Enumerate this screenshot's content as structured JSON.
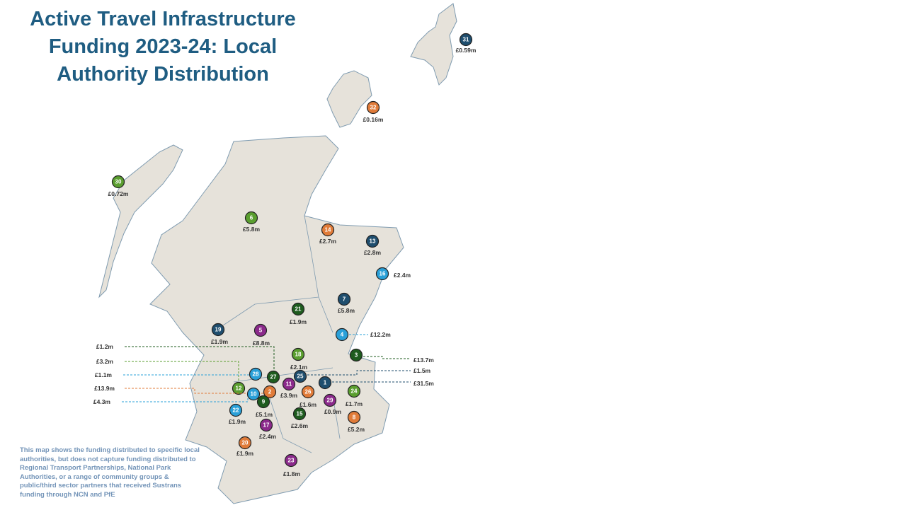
{
  "title": "Active Travel Infrastructure Funding 2023-24: Local Authority Distribution",
  "footnote": "This map shows the funding distributed to specific local authorities, but does not capture funding distributed to Regional Transport Partnerships, National Park Authorities, or a range of community groups & public/third sector partners that received Sustrans funding through NCN and PfE",
  "markers": [
    {
      "number": "31",
      "amount": "£0.59m",
      "color": "#1f4e6e"
    },
    {
      "number": "32",
      "amount": "£0.16m",
      "color": "#e07b39"
    },
    {
      "number": "30",
      "amount": "£0.72m",
      "color": "#5a9e2f"
    },
    {
      "number": "6",
      "amount": "£5.8m",
      "color": "#5a9e2f"
    },
    {
      "number": "14",
      "amount": "£2.7m",
      "color": "#e07b39"
    },
    {
      "number": "13",
      "amount": "£2.8m",
      "color": "#1f4e6e"
    },
    {
      "number": "16",
      "amount": "£2.4m",
      "color": "#2aa0d8"
    },
    {
      "number": "7",
      "amount": "£5.8m",
      "color": "#1f4e6e"
    },
    {
      "number": "21",
      "amount": "£1.9m",
      "color": "#1e5b1e"
    },
    {
      "number": "19",
      "amount": "£1.9m",
      "color": "#1f4e6e"
    },
    {
      "number": "5",
      "amount": "£8.8m",
      "color": "#8b2a8b"
    },
    {
      "number": "4",
      "amount": "£12.2m",
      "color": "#2aa0d8"
    },
    {
      "number": "3",
      "amount": "£13.7m",
      "color": "#1e5b1e"
    },
    {
      "number": "18",
      "amount": "£2.1m",
      "color": "#5a9e2f"
    },
    {
      "number": "27",
      "amount": "£1.2m",
      "color": "#1e5b1e"
    },
    {
      "number": "12",
      "amount": "£3.2m",
      "color": "#5a9e2f"
    },
    {
      "number": "28",
      "amount": "£1.1m",
      "color": "#2aa0d8"
    },
    {
      "number": "2",
      "amount": "£13.9m",
      "color": "#e07b39"
    },
    {
      "number": "10",
      "amount": "£4.3m",
      "color": "#2aa0d8"
    },
    {
      "number": "25",
      "amount": "£1.5m",
      "color": "#1f4e6e"
    },
    {
      "number": "1",
      "amount": "£31.5m",
      "color": "#1f4e6e"
    },
    {
      "number": "11",
      "amount": "£3.9m",
      "color": "#8b2a8b"
    },
    {
      "number": "26",
      "amount": "£1.6m",
      "color": "#e07b39"
    },
    {
      "number": "24",
      "amount": "£1.7m",
      "color": "#5a9e2f"
    },
    {
      "number": "9",
      "amount": "£5.1m",
      "color": "#1e5b1e"
    },
    {
      "number": "29",
      "amount": "£0.9m",
      "color": "#8b2a8b"
    },
    {
      "number": "22",
      "amount": "£1.9m",
      "color": "#2aa0d8"
    },
    {
      "number": "15",
      "amount": "£2.6m",
      "color": "#1e5b1e"
    },
    {
      "number": "8",
      "amount": "£5.2m",
      "color": "#e07b39"
    },
    {
      "number": "17",
      "amount": "£2.4m",
      "color": "#8b2a8b"
    },
    {
      "number": "20",
      "amount": "£1.9m",
      "color": "#e07b39"
    },
    {
      "number": "23",
      "amount": "£1.8m",
      "color": "#8b2a8b"
    }
  ]
}
